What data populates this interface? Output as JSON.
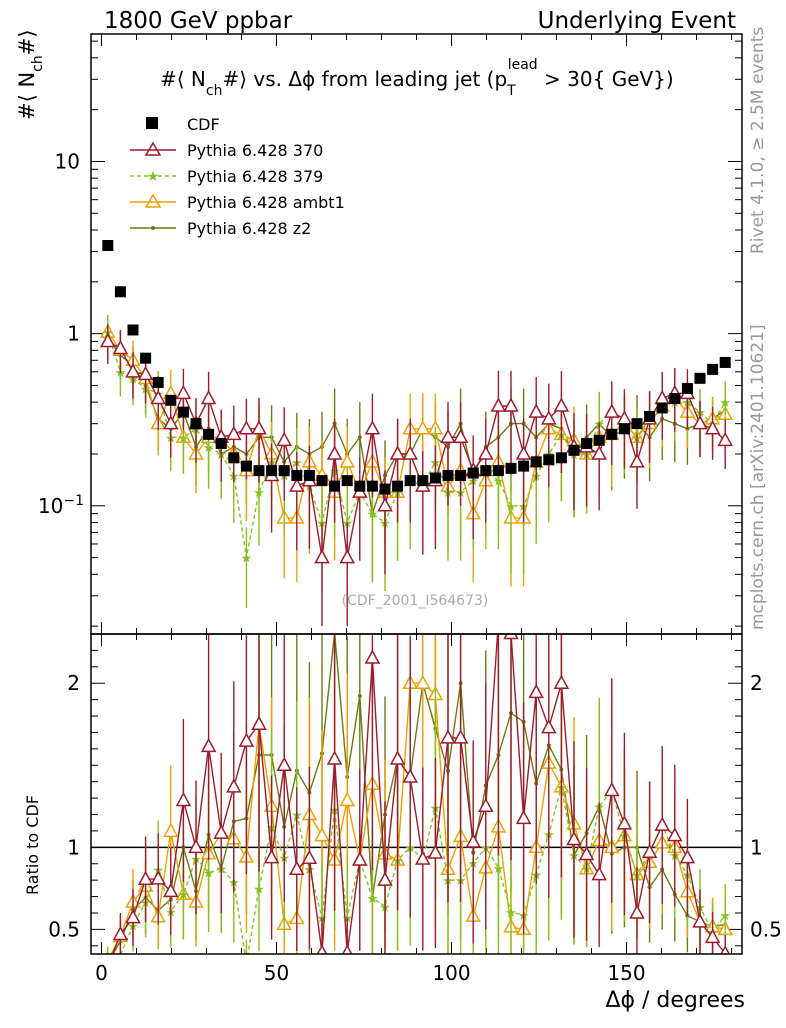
{
  "header": {
    "left": "1800 GeV ppbar",
    "right": "Underlying Event"
  },
  "side_labels": {
    "rivet": "Rivet 4.1.0, ≥ 2.5M events",
    "mcplots": "mcplots.cern.ch [arXiv:2401.10621]"
  },
  "analysis_id": "(CDF_2001_I564673)",
  "colors": {
    "cdf": "#000000",
    "p370": "#9b1c2e",
    "p379": "#86c21f",
    "ambt1": "#f0a000",
    "z2": "#6b7a12"
  },
  "chart_data": [
    {
      "type": "scatter",
      "title": "#⟨ N_ch#⟩ vs. Δϕ from leading jet  (p_T^lead > 30{ GeV})",
      "title_parts": {
        "pre": "#⟨ N",
        "sub1": "ch",
        "mid": "#⟩ vs. Δϕ from leading jet  (p",
        "sub2": "T",
        "sup2": "lead",
        "post": " > 30{ GeV})"
      },
      "ylabel": "#⟨ N_ch#⟩",
      "ylabel_parts": {
        "pre": "#⟨ N",
        "sub": "ch",
        "post": "#⟩"
      },
      "xlim": [
        -3,
        183
      ],
      "ylim": [
        0.018,
        55
      ],
      "yscale": "log",
      "yticks": [
        0.1,
        1,
        10
      ],
      "ytick_labels": [
        "10^-1",
        "1",
        "10"
      ],
      "legend": [
        "CDF",
        "Pythia 6.428 370",
        "Pythia 6.428 379",
        "Pythia 6.428 ambt1",
        "Pythia 6.428 z2"
      ],
      "legend_position": "top-left",
      "x": [
        1.8,
        5.4,
        9,
        12.6,
        16.2,
        19.8,
        23.4,
        27,
        30.6,
        34.2,
        37.8,
        41.4,
        45,
        48.6,
        52.2,
        55.8,
        59.4,
        63,
        66.6,
        70.2,
        73.8,
        77.4,
        81,
        84.6,
        88.2,
        91.8,
        95.4,
        99,
        102.6,
        106.2,
        109.8,
        113.4,
        117,
        120.6,
        124.2,
        127.8,
        131.4,
        135,
        138.6,
        142.2,
        145.8,
        149.4,
        153,
        156.6,
        160.2,
        163.8,
        167.4,
        171,
        174.6,
        178.2
      ],
      "series": [
        {
          "name": "CDF",
          "values": [
            3.25,
            1.75,
            1.05,
            0.72,
            0.52,
            0.41,
            0.35,
            0.3,
            0.26,
            0.23,
            0.19,
            0.17,
            0.16,
            0.16,
            0.16,
            0.15,
            0.15,
            0.14,
            0.13,
            0.14,
            0.13,
            0.13,
            0.125,
            0.13,
            0.14,
            0.14,
            0.145,
            0.15,
            0.15,
            0.155,
            0.16,
            0.16,
            0.165,
            0.17,
            0.18,
            0.185,
            0.19,
            0.21,
            0.23,
            0.24,
            0.26,
            0.28,
            0.3,
            0.33,
            0.37,
            0.42,
            0.48,
            0.55,
            0.62,
            0.68
          ]
        },
        {
          "name": "Pythia 6.428 370",
          "values": [
            0.9,
            0.82,
            0.6,
            0.58,
            0.42,
            0.3,
            0.45,
            0.3,
            0.42,
            0.25,
            0.26,
            0.28,
            0.28,
            0.15,
            0.24,
            0.13,
            0.14,
            0.05,
            0.2,
            0.05,
            0.12,
            0.28,
            0.1,
            0.2,
            0.2,
            0.13,
            0.14,
            0.25,
            0.25,
            0.16,
            0.2,
            0.38,
            0.38,
            0.2,
            0.35,
            0.32,
            0.38,
            0.22,
            0.22,
            0.2,
            0.35,
            0.32,
            0.18,
            0.32,
            0.42,
            0.45,
            0.45,
            0.3,
            0.28,
            0.24
          ]
        },
        {
          "name": "Pythia 6.428 379",
          "values": [
            1.02,
            0.6,
            0.55,
            0.48,
            0.45,
            0.25,
            0.25,
            0.28,
            0.22,
            0.2,
            0.15,
            0.05,
            0.12,
            0.18,
            0.15,
            0.18,
            0.13,
            0.08,
            0.16,
            0.08,
            0.12,
            0.09,
            0.08,
            0.12,
            0.14,
            0.13,
            0.18,
            0.12,
            0.12,
            0.14,
            0.16,
            0.14,
            0.1,
            0.1,
            0.15,
            0.2,
            0.26,
            0.2,
            0.2,
            0.3,
            0.35,
            0.3,
            0.25,
            0.32,
            0.42,
            0.4,
            0.4,
            0.35,
            0.3,
            0.4
          ]
        },
        {
          "name": "Pythia 6.428 ambt1",
          "values": [
            1.02,
            0.8,
            0.7,
            0.55,
            0.3,
            0.45,
            0.25,
            0.2,
            0.25,
            0.25,
            0.2,
            0.16,
            0.28,
            0.2,
            0.085,
            0.085,
            0.18,
            0.15,
            0.12,
            0.18,
            0.12,
            0.18,
            0.12,
            0.12,
            0.28,
            0.28,
            0.28,
            0.13,
            0.16,
            0.09,
            0.14,
            0.18,
            0.085,
            0.085,
            0.18,
            0.28,
            0.26,
            0.24,
            0.2,
            0.25,
            0.26,
            0.3,
            0.25,
            0.3,
            0.38,
            0.42,
            0.35,
            0.3,
            0.32,
            0.34
          ]
        },
        {
          "name": "Pythia 6.428 z2",
          "values": [
            0.95,
            0.75,
            0.65,
            0.5,
            0.32,
            0.28,
            0.35,
            0.22,
            0.28,
            0.2,
            0.22,
            0.2,
            0.25,
            0.25,
            0.18,
            0.22,
            0.2,
            0.22,
            0.3,
            0.2,
            0.25,
            0.09,
            0.15,
            0.2,
            0.2,
            0.28,
            0.25,
            0.22,
            0.3,
            0.15,
            0.22,
            0.25,
            0.3,
            0.3,
            0.25,
            0.3,
            0.28,
            0.2,
            0.25,
            0.3,
            0.25,
            0.28,
            0.3,
            0.25,
            0.32,
            0.3,
            0.28,
            0.3,
            0.32,
            0.36
          ]
        }
      ]
    },
    {
      "type": "line",
      "title": "",
      "ylabel": "Ratio to CDF",
      "xlabel": "Δϕ / degrees",
      "xlim": [
        -3,
        183
      ],
      "ylim": [
        0.35,
        2.3
      ],
      "yscale": "linear",
      "xticks": [
        0,
        50,
        100,
        150
      ],
      "yticks": [
        0.5,
        1,
        2
      ],
      "reference_line": 1
    }
  ]
}
